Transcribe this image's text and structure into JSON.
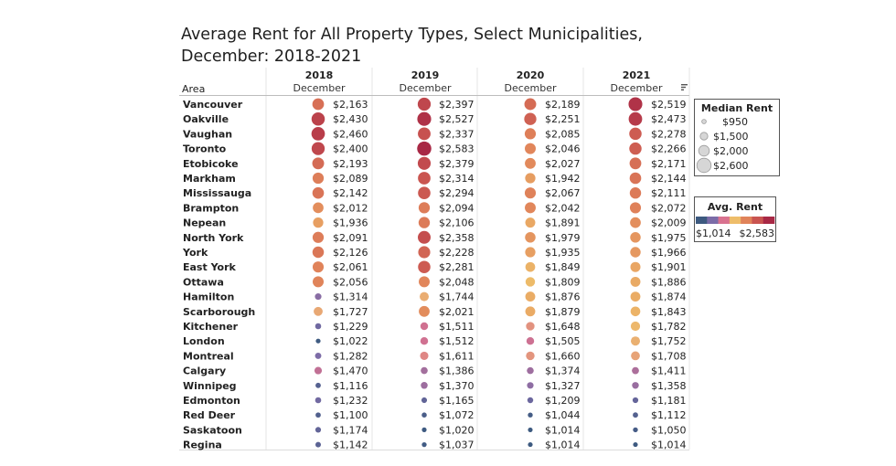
{
  "chart_data": {
    "type": "table",
    "title": "Average Rent for All Property Types, Select Municipalities, December: 2018-2021",
    "row_header": "Area",
    "columns": [
      {
        "year": "2018",
        "month": "December"
      },
      {
        "year": "2019",
        "month": "December"
      },
      {
        "year": "2020",
        "month": "December"
      },
      {
        "year": "2021",
        "month": "December"
      }
    ],
    "rows": [
      {
        "area": "Vancouver",
        "values": [
          2163,
          2397,
          2189,
          2519
        ]
      },
      {
        "area": "Oakville",
        "values": [
          2430,
          2527,
          2251,
          2473
        ]
      },
      {
        "area": "Vaughan",
        "values": [
          2460,
          2337,
          2085,
          2278
        ]
      },
      {
        "area": "Toronto",
        "values": [
          2400,
          2583,
          2046,
          2266
        ]
      },
      {
        "area": "Etobicoke",
        "values": [
          2193,
          2379,
          2027,
          2171
        ]
      },
      {
        "area": "Markham",
        "values": [
          2089,
          2314,
          1942,
          2144
        ]
      },
      {
        "area": "Mississauga",
        "values": [
          2142,
          2294,
          2067,
          2111
        ]
      },
      {
        "area": "Brampton",
        "values": [
          2012,
          2094,
          2042,
          2072
        ]
      },
      {
        "area": "Nepean",
        "values": [
          1936,
          2106,
          1891,
          2009
        ]
      },
      {
        "area": "North York",
        "values": [
          2091,
          2358,
          1979,
          1975
        ]
      },
      {
        "area": "York",
        "values": [
          2126,
          2228,
          1935,
          1966
        ]
      },
      {
        "area": "East York",
        "values": [
          2061,
          2281,
          1849,
          1901
        ]
      },
      {
        "area": "Ottawa",
        "values": [
          2056,
          2048,
          1809,
          1886
        ]
      },
      {
        "area": "Hamilton",
        "values": [
          1314,
          1744,
          1876,
          1874
        ]
      },
      {
        "area": "Scarborough",
        "values": [
          1727,
          2021,
          1879,
          1843
        ]
      },
      {
        "area": "Kitchener",
        "values": [
          1229,
          1511,
          1648,
          1782
        ]
      },
      {
        "area": "London",
        "values": [
          1022,
          1512,
          1505,
          1752
        ]
      },
      {
        "area": "Montreal",
        "values": [
          1282,
          1611,
          1660,
          1708
        ]
      },
      {
        "area": "Calgary",
        "values": [
          1470,
          1386,
          1374,
          1411
        ]
      },
      {
        "area": "Winnipeg",
        "values": [
          1116,
          1370,
          1327,
          1358
        ]
      },
      {
        "area": "Edmonton",
        "values": [
          1232,
          1165,
          1209,
          1181
        ]
      },
      {
        "area": "Red Deer",
        "values": [
          1100,
          1072,
          1044,
          1112
        ]
      },
      {
        "area": "Saskatoon",
        "values": [
          1174,
          1020,
          1014,
          1050
        ]
      },
      {
        "area": "Regina",
        "values": [
          1142,
          1037,
          1014,
          1014
        ]
      }
    ],
    "size_legend": {
      "title": "Median Rent",
      "entries": [
        {
          "label": "$950",
          "value": 950
        },
        {
          "label": "$1,500",
          "value": 1500
        },
        {
          "label": "$2,000",
          "value": 2000
        },
        {
          "label": "$2,600",
          "value": 2600
        }
      ]
    },
    "color_legend": {
      "title": "Avg. Rent",
      "min_label": "$1,014",
      "max_label": "$2,583",
      "min": 1014,
      "max": 2583
    },
    "palette": [
      "#3d5a80",
      "#7b6ca8",
      "#d9728f",
      "#eebd6a",
      "#e0835a",
      "#c95450",
      "#a82845"
    ],
    "sort_icon": "sort-descending-icon"
  }
}
